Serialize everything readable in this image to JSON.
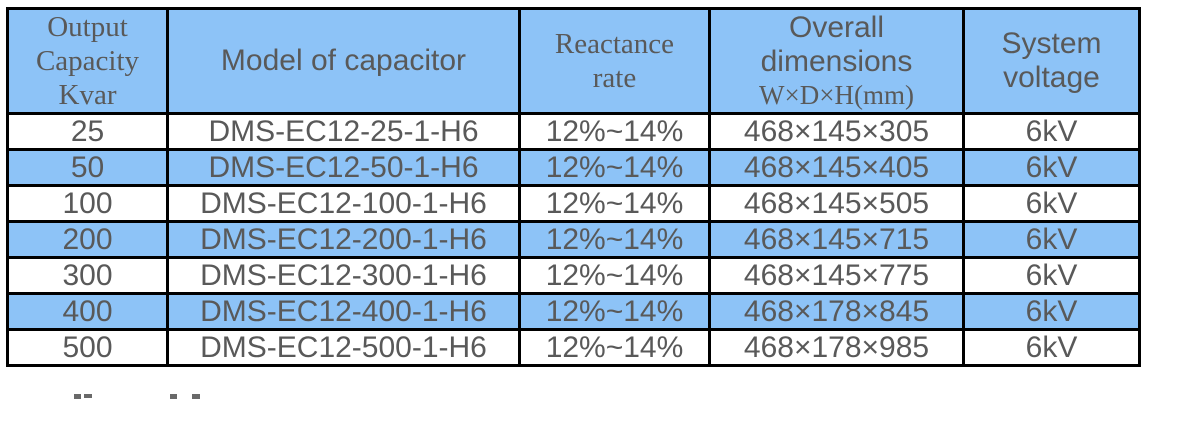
{
  "colors": {
    "header_fill": "#8dc3f7",
    "alt_row_fill": "#8dc3f7",
    "text": "#595959",
    "border": "#000000"
  },
  "table": {
    "header": {
      "capacity_lines": [
        "Output",
        "Capacity",
        "Kvar"
      ],
      "model": "Model of capacitor",
      "reactance_lines": [
        "Reactance",
        "rate"
      ],
      "dimensions_lines": [
        "Overall",
        "dimensions"
      ],
      "dimensions_unit": "W×D×H(mm)",
      "voltage_lines": [
        "System",
        "voltage"
      ]
    },
    "rows": [
      {
        "capacity": "25",
        "model": "DMS-EC12-25-1-H6",
        "reactance": "12%~14%",
        "dimensions": "468×145×305",
        "voltage": "6kV"
      },
      {
        "capacity": "50",
        "model": "DMS-EC12-50-1-H6",
        "reactance": "12%~14%",
        "dimensions": "468×145×405",
        "voltage": "6kV"
      },
      {
        "capacity": "100",
        "model": "DMS-EC12-100-1-H6",
        "reactance": "12%~14%",
        "dimensions": "468×145×505",
        "voltage": "6kV"
      },
      {
        "capacity": "200",
        "model": "DMS-EC12-200-1-H6",
        "reactance": "12%~14%",
        "dimensions": "468×145×715",
        "voltage": "6kV"
      },
      {
        "capacity": "300",
        "model": "DMS-EC12-300-1-H6",
        "reactance": "12%~14%",
        "dimensions": "468×145×775",
        "voltage": "6kV"
      },
      {
        "capacity": "400",
        "model": "DMS-EC12-400-1-H6",
        "reactance": "12%~14%",
        "dimensions": "468×178×845",
        "voltage": "6kV"
      },
      {
        "capacity": "500",
        "model": "DMS-EC12-500-1-H6",
        "reactance": "12%~14%",
        "dimensions": "468×178×985",
        "voltage": "6kV"
      }
    ]
  }
}
